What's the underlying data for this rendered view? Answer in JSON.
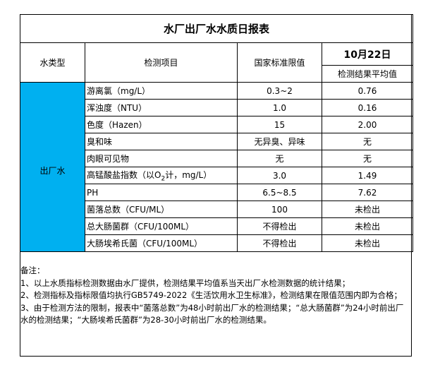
{
  "title": "水厂出厂水水质日报表",
  "headers": {
    "type": "水类型",
    "item": "检测项目",
    "limit": "国家标准限值",
    "date": "10月22日",
    "result": "检测结果平均值"
  },
  "water_type": "出厂水",
  "rows": [
    {
      "item": "游离氯（mg/L）",
      "limit": "0.3~2",
      "result": "0.76"
    },
    {
      "item": "浑浊度（NTU）",
      "limit": "1.0",
      "result": "0.16"
    },
    {
      "item": "色度（Hazen）",
      "limit": "15",
      "result": "2.00"
    },
    {
      "item": "臭和味",
      "limit": "无异臭、异味",
      "result": "无"
    },
    {
      "item": "肉眼可见物",
      "limit": "无",
      "result": "无"
    },
    {
      "item_pre": "高锰酸盐指数（以O",
      "item_sub": "2",
      "item_post": "计，mg/L）",
      "limit": "3.0",
      "result": "1.49"
    },
    {
      "item": "PH",
      "limit": "6.5~8.5",
      "result": "7.62"
    },
    {
      "item": "菌落总数（CFU/ML）",
      "limit": "100",
      "result": "未检出"
    },
    {
      "item": "总大肠菌群（CFU/100ML）",
      "limit": "不得检出",
      "result": "未检出"
    },
    {
      "item": "大肠埃希氏菌（CFU/100ML）",
      "limit": "不得检出",
      "result": "未检出"
    }
  ],
  "notes": {
    "heading": "备注：",
    "lines": [
      "1、以上水质指标检测数据由水厂提供，检测结果平均值系当天出厂水检测数据的统计结果；",
      "2、检测指标及指标限值均执行GB5749-2022《生活饮用水卫生标准》，检测结果在限值范围内即为合格；",
      "3、由于检测方法的限制，报表中“菌落总数”为48小时前出厂水的检测结果；“总大肠菌群”为24小时前出厂水的检测结果；“大肠埃希氏菌群”为28-30小时前出厂水的检测结果。"
    ]
  },
  "colors": {
    "highlight": "#00b0f0"
  }
}
